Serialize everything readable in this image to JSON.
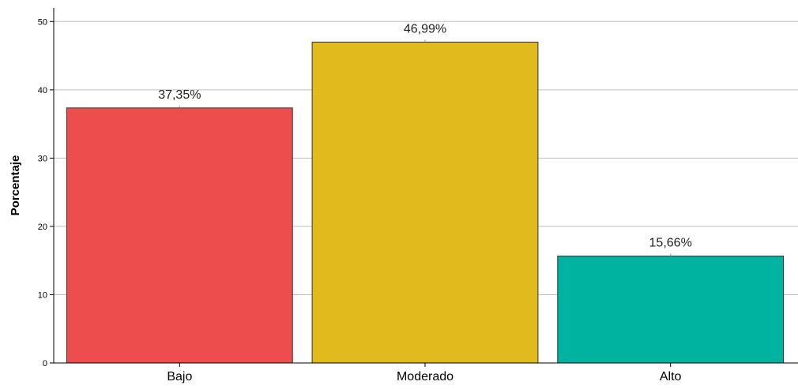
{
  "chart_data": {
    "type": "bar",
    "categories": [
      "Bajo",
      "Moderado",
      "Alto"
    ],
    "values": [
      37.35,
      46.99,
      15.66
    ],
    "data_labels": [
      "37,35%",
      "46,99%",
      "15,66%"
    ],
    "colors": [
      "#ed4d4d",
      "#e1bb1d",
      "#00b3a0"
    ],
    "ylabel": "Porcentaje",
    "xlabel": "",
    "ylim": [
      0,
      52
    ],
    "yticks": [
      0,
      10,
      20,
      30,
      40,
      50
    ],
    "grid": true,
    "legend": "none"
  }
}
